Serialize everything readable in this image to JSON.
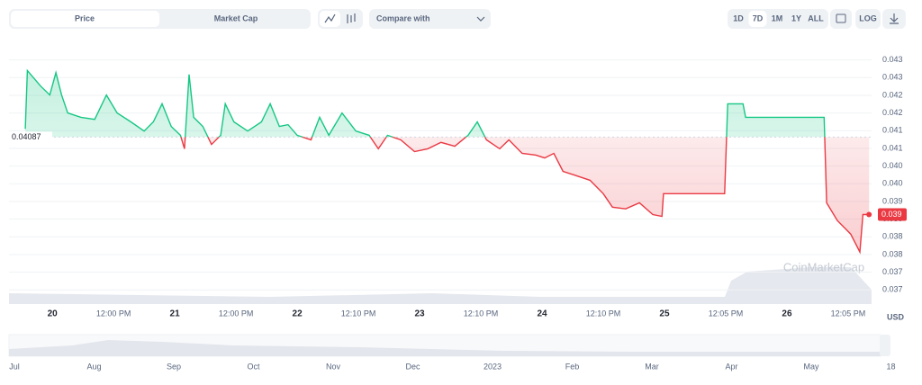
{
  "toolbar": {
    "tabs": [
      "Price",
      "Market Cap"
    ],
    "compare": "Compare with",
    "ranges": [
      "1D",
      "7D",
      "1M",
      "1Y",
      "ALL"
    ],
    "log": "LOG"
  },
  "chart_data": {
    "type": "line",
    "x": [
      -5.3,
      -4.9,
      -2.3,
      -0.5,
      0.7,
      1.8,
      3.0,
      5.6,
      8.3,
      10.6,
      12.7,
      15.4,
      18.0,
      19.8,
      21.5,
      23.3,
      25.1,
      25.9,
      26.8,
      27.7,
      29.5,
      31.2,
      33.0,
      33.9,
      35.6,
      38.3,
      41.0,
      42.7,
      44.5,
      46.2,
      48.0,
      50.7,
      52.4,
      54.2,
      56.8,
      59.5,
      62.1,
      63.9,
      65.7,
      68.3,
      71.0,
      73.6,
      76.2,
      78.9,
      81.5,
      83.3,
      85.1,
      87.7,
      89.5,
      92.1,
      94.8,
      96.5,
      98.3,
      100.1,
      102.7,
      105.4,
      108.0,
      109.8,
      112.4,
      115.1,
      117.7,
      119.5,
      119.8,
      123.9,
      129.2,
      131.8,
      132.4,
      135.4,
      135.9,
      143.3,
      151.3,
      151.8,
      153.9,
      156.5,
      158.3,
      158.9,
      160.1
    ],
    "series": [
      {
        "name": "Price",
        "values": [
          0.0411,
          0.04275,
          0.04231,
          0.04206,
          0.04269,
          0.04206,
          0.04155,
          0.04143,
          0.04137,
          0.04206,
          0.04155,
          0.0413,
          0.04104,
          0.0413,
          0.04181,
          0.04117,
          0.04092,
          0.04054,
          0.04264,
          0.04143,
          0.04117,
          0.04066,
          0.04092,
          0.04181,
          0.0413,
          0.04104,
          0.0413,
          0.04181,
          0.04117,
          0.04122,
          0.04092,
          0.04079,
          0.04143,
          0.04092,
          0.04155,
          0.04104,
          0.04092,
          0.04054,
          0.04092,
          0.04079,
          0.04046,
          0.04054,
          0.04072,
          0.04061,
          0.04092,
          0.0413,
          0.04079,
          0.04054,
          0.04079,
          0.04041,
          0.04036,
          0.04028,
          0.04041,
          0.0399,
          0.03978,
          0.03965,
          0.03927,
          0.03889,
          0.03884,
          0.03901,
          0.03868,
          0.03863,
          0.03927,
          0.03927,
          0.03927,
          0.03927,
          0.04181,
          0.04181,
          0.04143,
          0.04143,
          0.04143,
          0.03901,
          0.03851,
          0.03813,
          0.03762,
          0.03868,
          0.03868
        ],
        "up_color": "#16c784",
        "down_color": "#ea3943"
      }
    ],
    "baseline": 0.04087,
    "current_price_label": "0.039",
    "currency": "USD",
    "xlim": [
      -8.5,
      160.6
    ],
    "xticks": [
      {
        "value": 0,
        "label": "20"
      },
      {
        "value": 12,
        "label": "12:00 PM"
      },
      {
        "value": 24,
        "label": "21"
      },
      {
        "value": 36,
        "label": "12:00 PM"
      },
      {
        "value": 48,
        "label": "22"
      },
      {
        "value": 60,
        "label": "12:10 PM"
      },
      {
        "value": 72,
        "label": "23"
      },
      {
        "value": 84,
        "label": "12:10 PM"
      },
      {
        "value": 96,
        "label": "24"
      },
      {
        "value": 108,
        "label": "12:10 PM"
      },
      {
        "value": 120,
        "label": "25"
      },
      {
        "value": 132,
        "label": "12:05 PM"
      },
      {
        "value": 144,
        "label": "26"
      },
      {
        "value": 156,
        "label": "12:05 PM"
      }
    ],
    "ylim": [
      0.0361,
      0.0436
    ],
    "yticks": [
      {
        "value": 0.04305,
        "label": "0.043"
      },
      {
        "value": 0.04255,
        "label": "0.043"
      },
      {
        "value": 0.04205,
        "label": "0.042"
      },
      {
        "value": 0.04155,
        "label": "0.042"
      },
      {
        "value": 0.04105,
        "label": "0.041"
      },
      {
        "value": 0.04055,
        "label": "0.041"
      },
      {
        "value": 0.04005,
        "label": "0.040"
      },
      {
        "value": 0.03955,
        "label": "0.040"
      },
      {
        "value": 0.03905,
        "label": "0.039"
      },
      {
        "value": 0.03855,
        "label": "0.039"
      },
      {
        "value": 0.03805,
        "label": "0.038"
      },
      {
        "value": 0.03755,
        "label": "0.038"
      },
      {
        "value": 0.03705,
        "label": "0.037"
      },
      {
        "value": 0.03655,
        "label": "0.037"
      }
    ],
    "grid": true,
    "watermark": "CoinMarketCap",
    "navigator_labels": [
      "Jul",
      "Aug",
      "Sep",
      "Oct",
      "Nov",
      "Dec",
      "2023",
      "Feb",
      "Mar",
      "Apr",
      "May",
      "18"
    ]
  }
}
